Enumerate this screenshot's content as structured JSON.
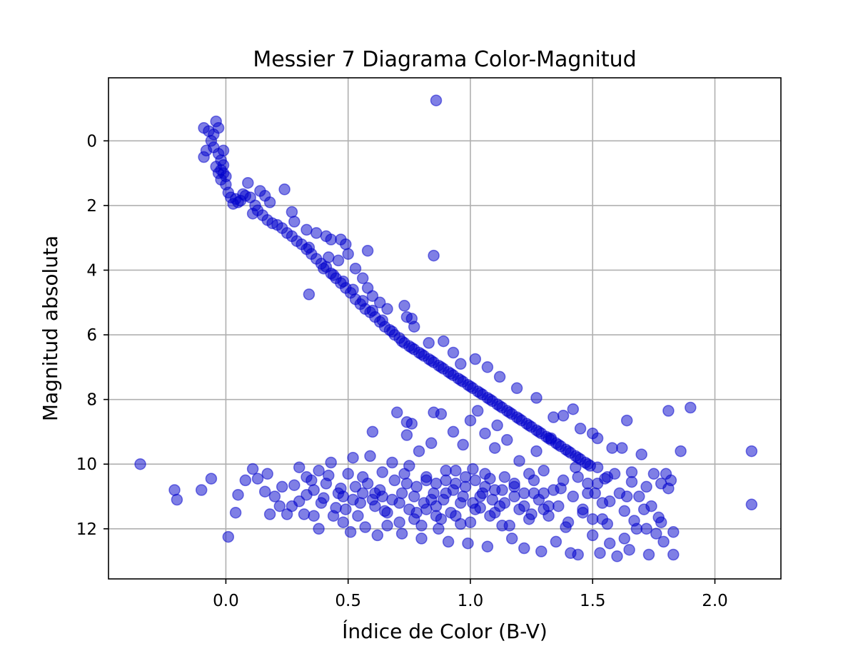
{
  "chart_data": {
    "type": "scatter",
    "title": "Messier 7 Diagrama Color-Magnitud",
    "xlabel": "Índice de Color (B-V)",
    "ylabel": "Magnitud absoluta",
    "xlim": [
      -0.48,
      2.27
    ],
    "ylim": [
      13.55,
      -1.95
    ],
    "y_inverted": true,
    "grid": true,
    "marker_color": "#0000cc",
    "marker_alpha": 0.5,
    "xticks": [
      0.0,
      0.5,
      1.0,
      1.5,
      2.0
    ],
    "xtick_labels": [
      "0.0",
      "0.5",
      "1.0",
      "1.5",
      "2.0"
    ],
    "yticks": [
      0,
      2,
      4,
      6,
      8,
      10,
      12
    ],
    "ytick_labels": [
      "0",
      "2",
      "4",
      "6",
      "8",
      "10",
      "12"
    ],
    "points": [
      [
        -0.09,
        -0.4
      ],
      [
        -0.07,
        -0.3
      ],
      [
        -0.04,
        -0.6
      ],
      [
        -0.03,
        -0.4
      ],
      [
        -0.06,
        0.0
      ],
      [
        -0.08,
        0.3
      ],
      [
        -0.05,
        0.2
      ],
      [
        -0.03,
        0.4
      ],
      [
        -0.01,
        0.3
      ],
      [
        -0.09,
        0.5
      ],
      [
        -0.05,
        -0.2
      ],
      [
        -0.02,
        0.6
      ],
      [
        -0.04,
        0.8
      ],
      [
        -0.02,
        0.9
      ],
      [
        -0.01,
        1.0
      ],
      [
        0.0,
        1.1
      ],
      [
        -0.01,
        0.75
      ],
      [
        -0.03,
        1.0
      ],
      [
        -0.02,
        1.2
      ],
      [
        0.0,
        1.35
      ],
      [
        0.01,
        1.6
      ],
      [
        0.02,
        1.75
      ],
      [
        0.04,
        1.8
      ],
      [
        0.05,
        1.9
      ],
      [
        0.06,
        1.85
      ],
      [
        0.08,
        1.7
      ],
      [
        0.1,
        1.75
      ],
      [
        0.03,
        1.95
      ],
      [
        0.07,
        1.65
      ],
      [
        0.12,
        2.0
      ],
      [
        0.13,
        2.15
      ],
      [
        0.11,
        2.25
      ],
      [
        0.15,
        2.3
      ],
      [
        0.17,
        2.45
      ],
      [
        0.19,
        2.55
      ],
      [
        0.21,
        2.6
      ],
      [
        0.23,
        2.7
      ],
      [
        0.25,
        2.85
      ],
      [
        0.27,
        2.95
      ],
      [
        0.29,
        3.1
      ],
      [
        0.31,
        3.2
      ],
      [
        0.33,
        3.35
      ],
      [
        0.35,
        3.5
      ],
      [
        0.37,
        3.65
      ],
      [
        0.39,
        3.8
      ],
      [
        0.41,
        3.9
      ],
      [
        0.43,
        4.1
      ],
      [
        0.45,
        4.25
      ],
      [
        0.47,
        4.4
      ],
      [
        0.49,
        4.55
      ],
      [
        0.51,
        4.7
      ],
      [
        0.53,
        4.9
      ],
      [
        0.55,
        5.05
      ],
      [
        0.57,
        5.2
      ],
      [
        0.59,
        5.3
      ],
      [
        0.61,
        5.45
      ],
      [
        0.63,
        5.6
      ],
      [
        0.65,
        5.75
      ],
      [
        0.67,
        5.85
      ],
      [
        0.69,
        6.0
      ],
      [
        0.71,
        6.1
      ],
      [
        0.73,
        6.25
      ],
      [
        0.75,
        6.35
      ],
      [
        0.77,
        6.45
      ],
      [
        0.79,
        6.55
      ],
      [
        0.81,
        6.65
      ],
      [
        0.83,
        6.75
      ],
      [
        0.85,
        6.85
      ],
      [
        0.87,
        6.95
      ],
      [
        0.89,
        7.05
      ],
      [
        0.91,
        7.15
      ],
      [
        0.93,
        7.25
      ],
      [
        0.95,
        7.35
      ],
      [
        0.97,
        7.45
      ],
      [
        0.99,
        7.55
      ],
      [
        1.01,
        7.65
      ],
      [
        1.03,
        7.75
      ],
      [
        1.05,
        7.85
      ],
      [
        1.07,
        7.95
      ],
      [
        1.09,
        8.05
      ],
      [
        1.11,
        8.15
      ],
      [
        1.13,
        8.25
      ],
      [
        1.15,
        8.35
      ],
      [
        1.17,
        8.45
      ],
      [
        1.19,
        8.55
      ],
      [
        1.21,
        8.65
      ],
      [
        1.23,
        8.75
      ],
      [
        1.25,
        8.85
      ],
      [
        1.27,
        8.95
      ],
      [
        1.29,
        9.05
      ],
      [
        1.31,
        9.15
      ],
      [
        1.33,
        9.25
      ],
      [
        1.35,
        9.35
      ],
      [
        1.37,
        9.45
      ],
      [
        1.39,
        9.55
      ],
      [
        1.41,
        9.65
      ],
      [
        1.43,
        9.75
      ],
      [
        1.45,
        9.85
      ],
      [
        1.47,
        9.95
      ],
      [
        1.49,
        10.05
      ],
      [
        0.34,
        3.3
      ],
      [
        0.4,
        3.95
      ],
      [
        0.44,
        4.15
      ],
      [
        0.48,
        4.35
      ],
      [
        0.52,
        4.6
      ],
      [
        0.56,
        4.95
      ],
      [
        0.6,
        5.25
      ],
      [
        0.64,
        5.55
      ],
      [
        0.68,
        5.9
      ],
      [
        0.72,
        6.2
      ],
      [
        0.76,
        6.4
      ],
      [
        0.8,
        6.6
      ],
      [
        0.84,
        6.8
      ],
      [
        0.88,
        7.0
      ],
      [
        0.92,
        7.2
      ],
      [
        0.96,
        7.4
      ],
      [
        1.0,
        7.6
      ],
      [
        1.04,
        7.8
      ],
      [
        1.08,
        8.0
      ],
      [
        1.12,
        8.2
      ],
      [
        1.16,
        8.4
      ],
      [
        1.2,
        8.6
      ],
      [
        1.24,
        8.8
      ],
      [
        1.28,
        9.0
      ],
      [
        1.32,
        9.2
      ],
      [
        1.36,
        9.4
      ],
      [
        1.4,
        9.6
      ],
      [
        1.44,
        9.8
      ],
      [
        1.48,
        10.0
      ],
      [
        1.52,
        10.1
      ],
      [
        0.09,
        1.3
      ],
      [
        0.14,
        1.55
      ],
      [
        0.16,
        1.7
      ],
      [
        0.18,
        1.9
      ],
      [
        0.24,
        1.5
      ],
      [
        0.27,
        2.2
      ],
      [
        0.28,
        2.5
      ],
      [
        0.33,
        2.75
      ],
      [
        0.37,
        2.85
      ],
      [
        0.41,
        2.95
      ],
      [
        0.43,
        3.05
      ],
      [
        0.47,
        3.05
      ],
      [
        0.49,
        3.2
      ],
      [
        0.5,
        3.5
      ],
      [
        0.42,
        3.6
      ],
      [
        0.46,
        3.7
      ],
      [
        0.53,
        3.95
      ],
      [
        0.56,
        4.25
      ],
      [
        0.58,
        4.55
      ],
      [
        0.6,
        4.8
      ],
      [
        0.63,
        5.0
      ],
      [
        0.66,
        5.2
      ],
      [
        0.73,
        5.1
      ],
      [
        0.74,
        5.45
      ],
      [
        0.76,
        5.5
      ],
      [
        0.77,
        5.75
      ],
      [
        0.83,
        6.25
      ],
      [
        0.89,
        6.2
      ],
      [
        0.93,
        6.55
      ],
      [
        0.96,
        6.9
      ],
      [
        1.02,
        6.75
      ],
      [
        1.07,
        7.0
      ],
      [
        1.12,
        7.3
      ],
      [
        1.19,
        7.65
      ],
      [
        1.27,
        7.95
      ],
      [
        1.34,
        8.55
      ],
      [
        1.38,
        8.5
      ],
      [
        1.42,
        8.3
      ],
      [
        1.45,
        8.9
      ],
      [
        1.5,
        9.05
      ],
      [
        0.86,
        -1.25
      ],
      [
        0.85,
        3.55
      ],
      [
        0.34,
        4.75
      ],
      [
        0.58,
        3.4
      ],
      [
        1.64,
        8.65
      ],
      [
        1.81,
        8.35
      ],
      [
        1.9,
        8.25
      ],
      [
        1.86,
        9.6
      ],
      [
        2.15,
        9.6
      ],
      [
        2.15,
        11.25
      ],
      [
        -0.35,
        10.0
      ],
      [
        -0.21,
        10.8
      ],
      [
        -0.2,
        11.1
      ],
      [
        -0.1,
        10.8
      ],
      [
        -0.06,
        10.45
      ],
      [
        0.01,
        12.25
      ],
      [
        0.04,
        11.5
      ],
      [
        0.05,
        10.95
      ],
      [
        0.08,
        10.5
      ],
      [
        0.11,
        10.15
      ],
      [
        0.13,
        10.45
      ],
      [
        0.16,
        10.85
      ],
      [
        0.17,
        10.3
      ],
      [
        0.18,
        11.55
      ],
      [
        0.2,
        11.0
      ],
      [
        0.22,
        11.3
      ],
      [
        0.23,
        10.7
      ],
      [
        0.25,
        11.55
      ],
      [
        0.27,
        11.3
      ],
      [
        0.28,
        10.65
      ],
      [
        0.3,
        11.15
      ],
      [
        0.32,
        11.55
      ],
      [
        0.33,
        10.95
      ],
      [
        0.35,
        10.5
      ],
      [
        0.36,
        11.6
      ],
      [
        0.38,
        10.2
      ],
      [
        0.38,
        12.0
      ],
      [
        0.4,
        11.05
      ],
      [
        0.42,
        10.35
      ],
      [
        0.43,
        9.95
      ],
      [
        0.45,
        11.35
      ],
      [
        0.47,
        10.75
      ],
      [
        0.48,
        11.8
      ],
      [
        0.5,
        10.3
      ],
      [
        0.51,
        12.1
      ],
      [
        0.52,
        9.8
      ],
      [
        0.54,
        11.6
      ],
      [
        0.56,
        10.4
      ],
      [
        0.57,
        11.95
      ],
      [
        0.59,
        9.75
      ],
      [
        0.6,
        9.0
      ],
      [
        0.61,
        10.9
      ],
      [
        0.62,
        12.2
      ],
      [
        0.64,
        10.25
      ],
      [
        0.65,
        11.45
      ],
      [
        0.66,
        11.9
      ],
      [
        0.68,
        9.95
      ],
      [
        0.7,
        8.4
      ],
      [
        0.71,
        11.2
      ],
      [
        0.72,
        12.15
      ],
      [
        0.74,
        8.7
      ],
      [
        0.74,
        9.1
      ],
      [
        0.75,
        10.05
      ],
      [
        0.76,
        8.75
      ],
      [
        0.77,
        11.7
      ],
      [
        0.79,
        9.6
      ],
      [
        0.8,
        12.3
      ],
      [
        0.82,
        10.5
      ],
      [
        0.84,
        9.35
      ],
      [
        0.85,
        8.4
      ],
      [
        0.86,
        11.6
      ],
      [
        0.87,
        12.0
      ],
      [
        0.88,
        8.45
      ],
      [
        0.9,
        10.2
      ],
      [
        0.91,
        12.4
      ],
      [
        0.93,
        9.0
      ],
      [
        0.94,
        10.6
      ],
      [
        0.96,
        11.85
      ],
      [
        0.97,
        9.4
      ],
      [
        0.99,
        12.45
      ],
      [
        1.0,
        8.65
      ],
      [
        1.01,
        10.15
      ],
      [
        1.03,
        8.35
      ],
      [
        1.04,
        11.35
      ],
      [
        1.06,
        9.05
      ],
      [
        1.07,
        12.55
      ],
      [
        1.08,
        10.45
      ],
      [
        1.1,
        9.5
      ],
      [
        1.11,
        8.8
      ],
      [
        1.13,
        11.9
      ],
      [
        1.15,
        9.25
      ],
      [
        1.17,
        12.3
      ],
      [
        1.18,
        10.6
      ],
      [
        1.2,
        9.9
      ],
      [
        1.22,
        12.6
      ],
      [
        1.24,
        10.3
      ],
      [
        1.25,
        11.55
      ],
      [
        1.27,
        9.6
      ],
      [
        1.29,
        12.7
      ],
      [
        1.3,
        10.9
      ],
      [
        1.32,
        11.3
      ],
      [
        1.33,
        9.2
      ],
      [
        1.35,
        12.4
      ],
      [
        1.37,
        10.75
      ],
      [
        1.39,
        11.95
      ],
      [
        1.41,
        12.75
      ],
      [
        1.43,
        10.1
      ],
      [
        1.44,
        12.8
      ],
      [
        1.46,
        11.4
      ],
      [
        1.48,
        10.6
      ],
      [
        1.5,
        12.2
      ],
      [
        1.52,
        9.2
      ],
      [
        1.53,
        12.75
      ],
      [
        1.55,
        10.45
      ],
      [
        1.56,
        11.85
      ],
      [
        1.57,
        12.45
      ],
      [
        1.58,
        9.5
      ],
      [
        1.6,
        12.85
      ],
      [
        1.61,
        10.9
      ],
      [
        1.62,
        9.5
      ],
      [
        1.63,
        12.3
      ],
      [
        1.64,
        11.0
      ],
      [
        1.65,
        12.65
      ],
      [
        1.66,
        10.25
      ],
      [
        1.67,
        11.75
      ],
      [
        1.68,
        12.0
      ],
      [
        1.7,
        9.7
      ],
      [
        1.71,
        11.4
      ],
      [
        1.72,
        10.7
      ],
      [
        1.73,
        12.8
      ],
      [
        1.74,
        11.3
      ],
      [
        1.75,
        10.3
      ],
      [
        1.76,
        12.15
      ],
      [
        1.77,
        11.65
      ],
      [
        1.78,
        10.6
      ],
      [
        1.79,
        12.4
      ],
      [
        1.8,
        10.3
      ],
      [
        1.81,
        10.75
      ],
      [
        1.82,
        10.5
      ],
      [
        1.83,
        12.1
      ],
      [
        1.83,
        12.8
      ],
      [
        1.78,
        11.8
      ],
      [
        1.72,
        12.0
      ],
      [
        1.69,
        11.0
      ],
      [
        1.66,
        10.55
      ],
      [
        1.63,
        11.45
      ],
      [
        1.59,
        10.3
      ],
      [
        1.57,
        11.15
      ],
      [
        1.54,
        11.7
      ],
      [
        1.51,
        10.9
      ],
      [
        0.3,
        10.1
      ],
      [
        0.33,
        10.4
      ],
      [
        0.36,
        10.8
      ],
      [
        0.39,
        11.2
      ],
      [
        0.41,
        10.6
      ],
      [
        0.44,
        11.6
      ],
      [
        0.46,
        10.9
      ],
      [
        0.49,
        11.4
      ],
      [
        0.53,
        10.7
      ],
      [
        0.55,
        11.2
      ],
      [
        0.58,
        10.6
      ],
      [
        0.61,
        11.3
      ],
      [
        0.63,
        10.8
      ],
      [
        0.66,
        11.5
      ],
      [
        0.69,
        10.5
      ],
      [
        0.71,
        11.8
      ],
      [
        0.73,
        10.3
      ],
      [
        0.75,
        11.4
      ],
      [
        0.78,
        10.7
      ],
      [
        0.8,
        11.9
      ],
      [
        0.82,
        10.4
      ],
      [
        0.84,
        11.1
      ],
      [
        0.86,
        10.6
      ],
      [
        0.88,
        11.7
      ],
      [
        0.9,
        10.9
      ],
      [
        0.92,
        11.5
      ],
      [
        0.94,
        10.2
      ],
      [
        0.96,
        11.2
      ],
      [
        0.98,
        10.7
      ],
      [
        1.0,
        11.8
      ],
      [
        1.02,
        10.5
      ],
      [
        1.04,
        11.0
      ],
      [
        1.06,
        10.3
      ],
      [
        1.08,
        11.6
      ],
      [
        1.1,
        10.8
      ],
      [
        1.12,
        11.3
      ],
      [
        1.14,
        10.4
      ],
      [
        1.16,
        11.9
      ],
      [
        1.18,
        10.7
      ],
      [
        1.2,
        11.4
      ],
      [
        1.22,
        10.9
      ],
      [
        1.24,
        11.7
      ],
      [
        1.26,
        10.5
      ],
      [
        1.28,
        11.1
      ],
      [
        1.3,
        10.2
      ],
      [
        1.32,
        11.6
      ],
      [
        1.34,
        10.8
      ],
      [
        1.36,
        11.3
      ],
      [
        1.38,
        10.5
      ],
      [
        1.4,
        11.8
      ],
      [
        1.42,
        11.0
      ],
      [
        1.44,
        10.4
      ],
      [
        1.46,
        11.5
      ],
      [
        1.48,
        10.9
      ],
      [
        1.5,
        11.7
      ],
      [
        1.52,
        10.6
      ],
      [
        1.54,
        11.2
      ],
      [
        1.56,
        10.4
      ],
      [
        0.72,
        10.9
      ],
      [
        0.77,
        11.0
      ],
      [
        0.81,
        11.2
      ],
      [
        0.85,
        10.9
      ],
      [
        0.89,
        11.1
      ],
      [
        0.93,
        10.8
      ],
      [
        0.97,
        11.0
      ],
      [
        1.01,
        11.2
      ],
      [
        1.05,
        10.9
      ],
      [
        1.09,
        11.1
      ],
      [
        1.13,
        10.8
      ],
      [
        0.68,
        11.1
      ],
      [
        0.64,
        11.0
      ],
      [
        0.6,
        11.1
      ],
      [
        0.56,
        10.9
      ],
      [
        0.52,
        11.1
      ],
      [
        0.48,
        11.0
      ],
      [
        0.74,
        10.6
      ],
      [
        0.78,
        11.5
      ],
      [
        0.82,
        11.4
      ],
      [
        0.86,
        11.3
      ],
      [
        0.9,
        10.5
      ],
      [
        0.94,
        11.6
      ],
      [
        0.98,
        10.4
      ],
      [
        1.02,
        11.4
      ],
      [
        1.06,
        10.7
      ],
      [
        1.1,
        11.5
      ],
      [
        1.14,
        11.2
      ],
      [
        1.18,
        11.0
      ],
      [
        1.22,
        11.3
      ],
      [
        1.26,
        10.9
      ],
      [
        1.3,
        11.4
      ]
    ]
  }
}
